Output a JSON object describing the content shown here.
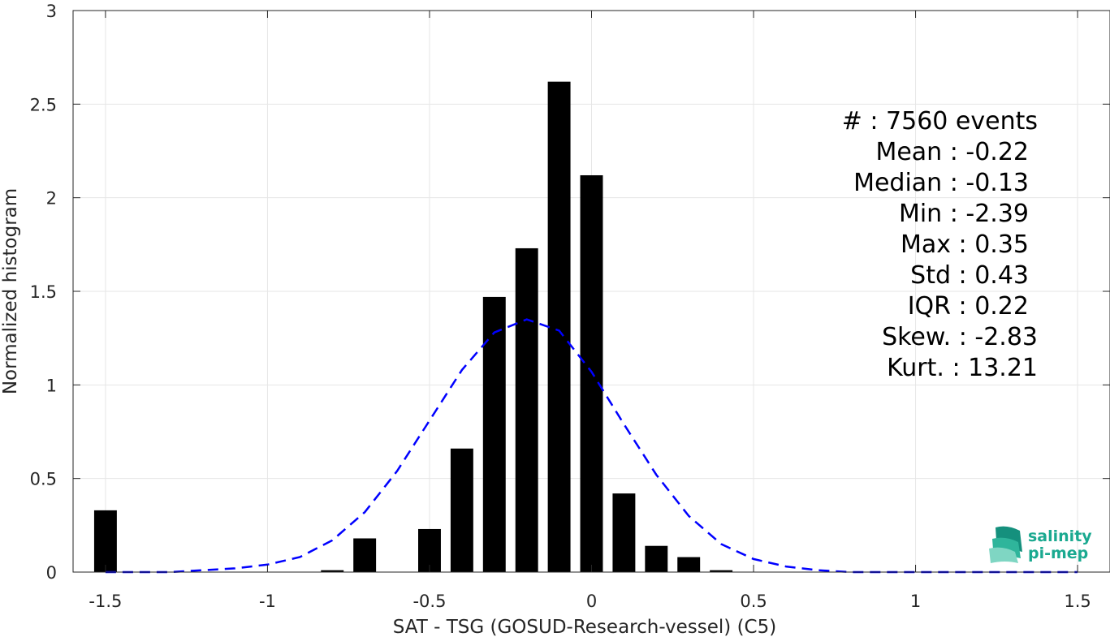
{
  "chart_data": {
    "type": "bar",
    "xlabel": "SAT - TSG (GOSUD-Research-vessel) (C5)",
    "ylabel": "Normalized histogram",
    "xlim": [
      -1.6,
      1.6
    ],
    "ylim": [
      0,
      3
    ],
    "xticks": [
      -1.5,
      -1,
      -0.5,
      0,
      0.5,
      1,
      1.5
    ],
    "xtick_labels": [
      "-1.5",
      "-1",
      "-0.5",
      "0",
      "0.5",
      "1",
      "1.5"
    ],
    "yticks": [
      0,
      0.5,
      1,
      1.5,
      2,
      2.5,
      3
    ],
    "ytick_labels": [
      "0",
      "0.5",
      "1",
      "1.5",
      "2",
      "2.5",
      "3"
    ],
    "grid": true,
    "bar_width": 0.07,
    "bars": {
      "x": [
        -1.5,
        -0.8,
        -0.7,
        -0.5,
        -0.4,
        -0.3,
        -0.2,
        -0.1,
        0.0,
        0.1,
        0.2,
        0.3,
        0.4
      ],
      "values": [
        0.33,
        0.01,
        0.18,
        0.23,
        0.66,
        1.47,
        1.73,
        2.62,
        2.12,
        0.42,
        0.14,
        0.08,
        0.01
      ],
      "color": "#000000"
    },
    "fit_curve": {
      "style": "dashed",
      "color": "#0000ff",
      "x": [
        -1.5,
        -1.4,
        -1.3,
        -1.2,
        -1.1,
        -1.0,
        -0.9,
        -0.8,
        -0.7,
        -0.6,
        -0.5,
        -0.4,
        -0.3,
        -0.2,
        -0.1,
        0.0,
        0.1,
        0.2,
        0.3,
        0.4,
        0.5,
        0.6,
        0.7,
        0.8,
        0.9,
        1.0,
        1.1,
        1.2,
        1.3,
        1.4,
        1.5
      ],
      "y": [
        0.0,
        0.0,
        0.0,
        0.01,
        0.02,
        0.04,
        0.08,
        0.17,
        0.32,
        0.54,
        0.81,
        1.08,
        1.28,
        1.35,
        1.29,
        1.07,
        0.79,
        0.52,
        0.3,
        0.15,
        0.07,
        0.03,
        0.01,
        0.0,
        0.0,
        0.0,
        0.0,
        0.0,
        0.0,
        0.0,
        0.0
      ]
    },
    "stats_lines": [
      "#  : 7560 events",
      "Mean : -0.22",
      "Median : -0.13",
      "Min : -2.39",
      "Max : 0.35",
      "Std : 0.43",
      "IQR : 0.22",
      "Skew. : -2.83",
      "Kurt. : 13.21"
    ]
  },
  "logo": {
    "line1": "salinity",
    "line2": "pi-mep",
    "color": "#1aa990"
  }
}
